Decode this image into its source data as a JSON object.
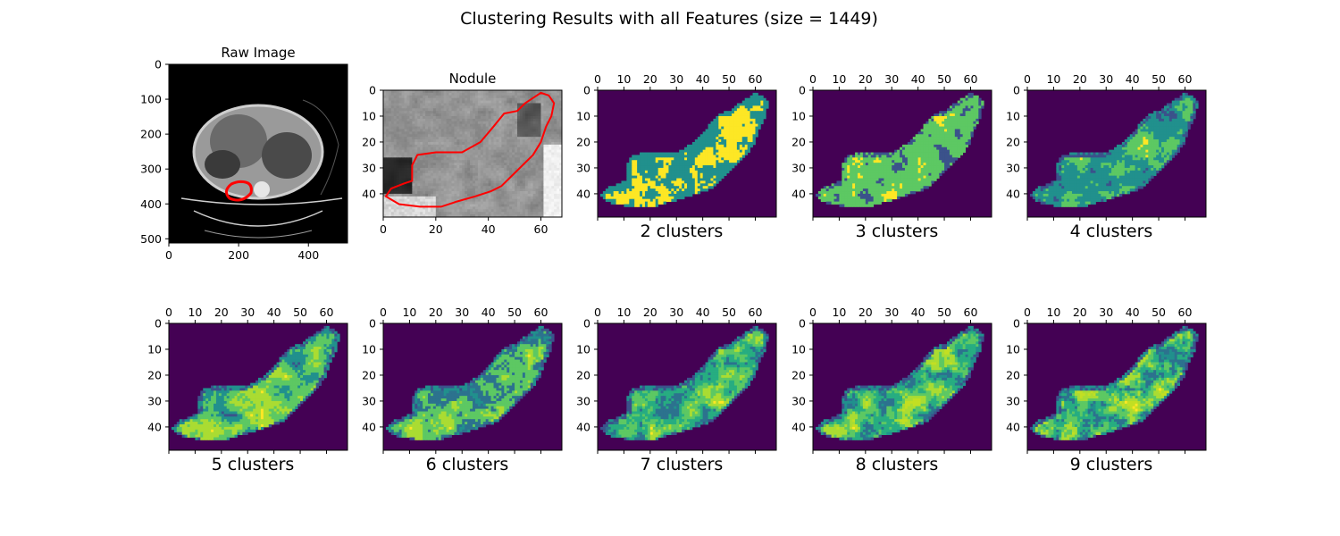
{
  "figure": {
    "title": "Clustering Results with all Features (size = 1449)"
  },
  "colors": {
    "cluster_palette": [
      "#440154",
      "#3b528b",
      "#21908d",
      "#5dc863",
      "#fde725",
      "#2c728e",
      "#27ad81",
      "#aadc32",
      "#c2df23"
    ],
    "contour": "#ff0000",
    "ct_black": "#000000"
  },
  "chart_data": [
    {
      "type": "heatmap",
      "title": "Raw Image",
      "content": "CT scan axial slice with red nodule contour",
      "xticks": [
        "0",
        "200",
        "400"
      ],
      "yticks": [
        "0",
        "100",
        "200",
        "300",
        "400",
        "500"
      ],
      "xlim": [
        0,
        512
      ],
      "ylim": [
        512,
        0
      ],
      "tick_position": "bottom"
    },
    {
      "type": "heatmap",
      "title": "Nodule",
      "content": "zoomed grayscale nodule region with red contour",
      "xticks": [
        "0",
        "20",
        "40",
        "60"
      ],
      "yticks": [
        "0",
        "10",
        "20",
        "30",
        "40"
      ],
      "xlim": [
        0,
        68
      ],
      "ylim": [
        49,
        0
      ],
      "tick_position": "bottom"
    },
    {
      "type": "heatmap",
      "clusters": 2,
      "label": "2 clusters",
      "xticks": [
        "0",
        "10",
        "20",
        "30",
        "40",
        "50",
        "60"
      ],
      "yticks": [
        "0",
        "10",
        "20",
        "30",
        "40"
      ],
      "xlim": [
        0,
        68
      ],
      "ylim": [
        49,
        0
      ],
      "tick_position": "top"
    },
    {
      "type": "heatmap",
      "clusters": 3,
      "label": "3 clusters",
      "xticks": [
        "0",
        "10",
        "20",
        "30",
        "40",
        "50",
        "60"
      ],
      "yticks": [
        "0",
        "10",
        "20",
        "30",
        "40"
      ],
      "xlim": [
        0,
        68
      ],
      "ylim": [
        49,
        0
      ],
      "tick_position": "top"
    },
    {
      "type": "heatmap",
      "clusters": 4,
      "label": "4 clusters",
      "xticks": [
        "0",
        "10",
        "20",
        "30",
        "40",
        "50",
        "60"
      ],
      "yticks": [
        "0",
        "10",
        "20",
        "30",
        "40"
      ],
      "xlim": [
        0,
        68
      ],
      "ylim": [
        49,
        0
      ],
      "tick_position": "top"
    },
    {
      "type": "heatmap",
      "clusters": 5,
      "label": "5 clusters",
      "xticks": [
        "0",
        "10",
        "20",
        "30",
        "40",
        "50",
        "60"
      ],
      "yticks": [
        "0",
        "10",
        "20",
        "30",
        "40"
      ],
      "xlim": [
        0,
        68
      ],
      "ylim": [
        49,
        0
      ],
      "tick_position": "top"
    },
    {
      "type": "heatmap",
      "clusters": 6,
      "label": "6 clusters",
      "xticks": [
        "0",
        "10",
        "20",
        "30",
        "40",
        "50",
        "60"
      ],
      "yticks": [
        "0",
        "10",
        "20",
        "30",
        "40"
      ],
      "xlim": [
        0,
        68
      ],
      "ylim": [
        49,
        0
      ],
      "tick_position": "top"
    },
    {
      "type": "heatmap",
      "clusters": 7,
      "label": "7 clusters",
      "xticks": [
        "0",
        "10",
        "20",
        "30",
        "40",
        "50",
        "60"
      ],
      "yticks": [
        "0",
        "10",
        "20",
        "30",
        "40"
      ],
      "xlim": [
        0,
        68
      ],
      "ylim": [
        49,
        0
      ],
      "tick_position": "top"
    },
    {
      "type": "heatmap",
      "clusters": 8,
      "label": "8 clusters",
      "xticks": [
        "0",
        "10",
        "20",
        "30",
        "40",
        "50",
        "60"
      ],
      "yticks": [
        "0",
        "10",
        "20",
        "30",
        "40"
      ],
      "xlim": [
        0,
        68
      ],
      "ylim": [
        49,
        0
      ],
      "tick_position": "top"
    },
    {
      "type": "heatmap",
      "clusters": 9,
      "label": "9 clusters",
      "xticks": [
        "0",
        "10",
        "20",
        "30",
        "40",
        "50",
        "60"
      ],
      "yticks": [
        "0",
        "10",
        "20",
        "30",
        "40"
      ],
      "xlim": [
        0,
        68
      ],
      "ylim": [
        49,
        0
      ],
      "tick_position": "top"
    }
  ]
}
